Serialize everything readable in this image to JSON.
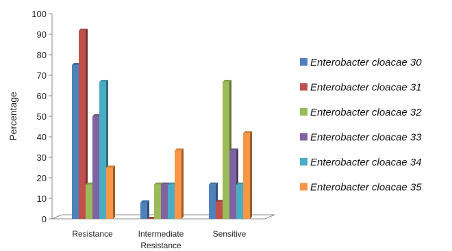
{
  "chart_data": {
    "type": "bar",
    "xlabel": "",
    "ylabel": "Percentage",
    "ylim": [
      0,
      100
    ],
    "yticks": [
      0,
      10,
      20,
      30,
      40,
      50,
      60,
      70,
      80,
      90,
      100
    ],
    "categories": [
      "Resistance",
      "Intermediate Resistance",
      "Sensitive"
    ],
    "category_lines": [
      [
        "Resistance"
      ],
      [
        "Intermediate",
        "Resistance"
      ],
      [
        "Sensitive"
      ]
    ],
    "series": [
      {
        "name": "Enterobacter cloacae 30",
        "color": "#4F81BD",
        "values": [
          75,
          8,
          16.7
        ]
      },
      {
        "name": "Enterobacter cloacae 31",
        "color": "#C0504D",
        "values": [
          91.7,
          0,
          8.3
        ]
      },
      {
        "name": "Enterobacter cloacae 32",
        "color": "#9BBB59",
        "values": [
          16.7,
          16.7,
          66.7
        ]
      },
      {
        "name": "Enterobacter cloacae 33",
        "color": "#8064A2",
        "values": [
          50,
          16.7,
          33.3
        ]
      },
      {
        "name": "Enterobacter cloacae 34",
        "color": "#4BACC6",
        "values": [
          66.7,
          16.7,
          16.7
        ]
      },
      {
        "name": "Enterobacter cloacae 35",
        "color": "#F79646",
        "values": [
          25,
          33.3,
          41.7
        ]
      }
    ],
    "grid": false,
    "legend_position": "right",
    "style": "3d-clustered"
  }
}
